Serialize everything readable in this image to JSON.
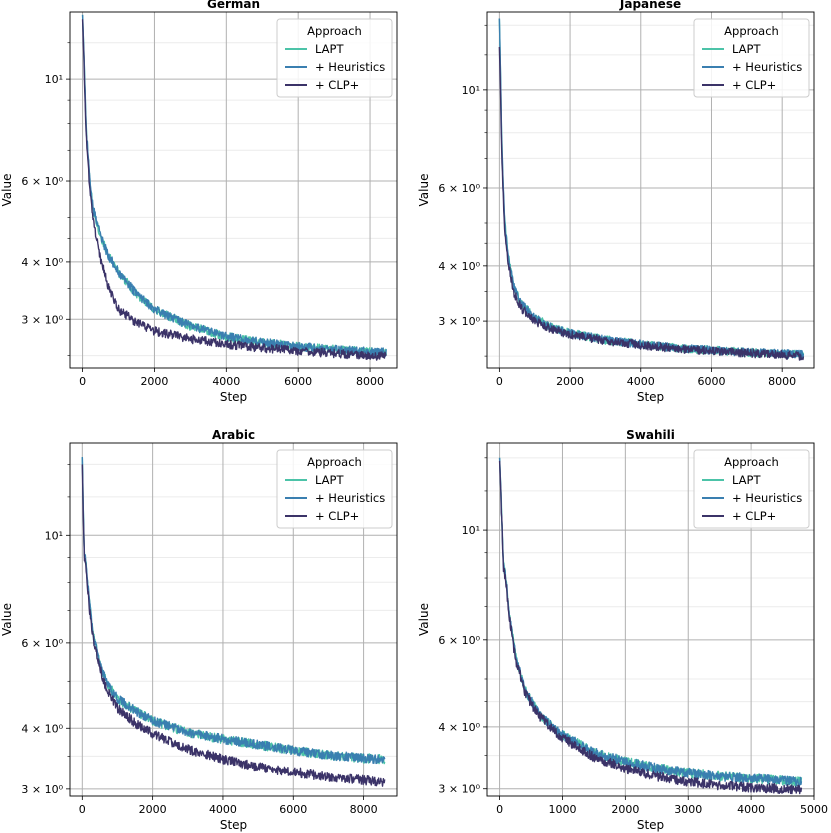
{
  "figure": {
    "y_axis_label": "Value",
    "x_axis_label": "Step"
  },
  "chart_data": [
    {
      "type": "line",
      "title": "German",
      "xlabel": "Step",
      "ylabel": "Value",
      "yscale": "log",
      "xlim": [
        -350,
        8750
      ],
      "ylim": [
        2.35,
        14.0
      ],
      "xticks": [
        0,
        2000,
        4000,
        6000,
        8000
      ],
      "xticklabels": [
        "0",
        "2000",
        "4000",
        "6000",
        "8000"
      ],
      "yticks": [
        3,
        4,
        6,
        10
      ],
      "yticklabels": [
        "3 × 10⁰",
        "4 × 10⁰",
        "6 × 10⁰",
        "10¹"
      ],
      "legend": {
        "title": "Approach",
        "position": "top-right"
      },
      "series": [
        {
          "name": "LAPT",
          "color": "#4cc3a8",
          "x": [
            0,
            50,
            100,
            200,
            300,
            500,
            700,
            1000,
            1500,
            2000,
            3000,
            4000,
            5000,
            6000,
            7000,
            8000,
            8450
          ],
          "values": [
            13.8,
            10.5,
            7.8,
            6.0,
            5.2,
            4.55,
            4.15,
            3.8,
            3.4,
            3.15,
            2.9,
            2.75,
            2.67,
            2.62,
            2.58,
            2.55,
            2.54
          ]
        },
        {
          "name": "+ Heuristics",
          "color": "#3a7fb0",
          "x": [
            0,
            50,
            100,
            200,
            300,
            500,
            700,
            1000,
            1500,
            2000,
            3000,
            4000,
            5000,
            6000,
            7000,
            8000,
            8450
          ],
          "values": [
            13.8,
            10.5,
            7.8,
            6.0,
            5.2,
            4.55,
            4.15,
            3.8,
            3.4,
            3.15,
            2.9,
            2.75,
            2.67,
            2.62,
            2.58,
            2.55,
            2.54
          ]
        },
        {
          "name": "+ CLP+",
          "color": "#3b3368",
          "x": [
            0,
            50,
            100,
            200,
            300,
            500,
            700,
            1000,
            1500,
            2000,
            3000,
            4000,
            5000,
            6000,
            7000,
            8000,
            8450
          ],
          "values": [
            13.5,
            10.0,
            7.5,
            5.7,
            4.9,
            4.05,
            3.55,
            3.15,
            2.95,
            2.83,
            2.72,
            2.65,
            2.6,
            2.56,
            2.53,
            2.5,
            2.49
          ]
        }
      ]
    },
    {
      "type": "line",
      "title": "Japanese",
      "xlabel": "Step",
      "ylabel": "Value",
      "yscale": "log",
      "xlim": [
        -350,
        8900
      ],
      "ylim": [
        2.35,
        15.0
      ],
      "xticks": [
        0,
        2000,
        4000,
        6000,
        8000
      ],
      "xticklabels": [
        "0",
        "2000",
        "4000",
        "6000",
        "8000"
      ],
      "yticks": [
        3,
        4,
        6,
        10
      ],
      "yticklabels": [
        "3 × 10⁰",
        "4 × 10⁰",
        "6 × 10⁰",
        "10¹"
      ],
      "legend": {
        "title": "Approach",
        "position": "top-right"
      },
      "series": [
        {
          "name": "LAPT",
          "color": "#4cc3a8",
          "x": [
            0,
            30,
            60,
            100,
            150,
            250,
            400,
            600,
            1000,
            1500,
            2000,
            3000,
            4000,
            5000,
            6000,
            7000,
            8000,
            8600
          ],
          "values": [
            14.5,
            11.0,
            8.0,
            6.3,
            5.0,
            4.2,
            3.6,
            3.3,
            3.05,
            2.9,
            2.82,
            2.72,
            2.66,
            2.61,
            2.58,
            2.55,
            2.53,
            2.52
          ]
        },
        {
          "name": "+ Heuristics",
          "color": "#3a7fb0",
          "x": [
            0,
            30,
            60,
            100,
            150,
            250,
            400,
            600,
            1000,
            1500,
            2000,
            3000,
            4000,
            5000,
            6000,
            7000,
            8000,
            8600
          ],
          "values": [
            14.5,
            11.0,
            8.0,
            6.3,
            5.0,
            4.2,
            3.6,
            3.3,
            3.05,
            2.9,
            2.82,
            2.72,
            2.66,
            2.61,
            2.58,
            2.55,
            2.53,
            2.52
          ]
        },
        {
          "name": "+ CLP+",
          "color": "#3b3368",
          "x": [
            0,
            30,
            60,
            100,
            150,
            250,
            400,
            600,
            1000,
            1500,
            2000,
            3000,
            4000,
            5000,
            6000,
            7000,
            8000,
            8600
          ],
          "values": [
            12.5,
            10.0,
            7.5,
            6.0,
            4.8,
            4.05,
            3.5,
            3.22,
            3.0,
            2.87,
            2.8,
            2.71,
            2.65,
            2.6,
            2.57,
            2.54,
            2.52,
            2.5
          ]
        }
      ]
    },
    {
      "type": "line",
      "title": "Arabic",
      "xlabel": "Step",
      "ylabel": "Value",
      "yscale": "log",
      "xlim": [
        -350,
        8950
      ],
      "ylim": [
        2.9,
        15.5
      ],
      "xticks": [
        0,
        2000,
        4000,
        6000,
        8000
      ],
      "xticklabels": [
        "0",
        "2000",
        "4000",
        "6000",
        "8000"
      ],
      "yticks": [
        3,
        4,
        6,
        10
      ],
      "yticklabels": [
        "3 × 10⁰",
        "4 × 10⁰",
        "6 × 10⁰",
        "10¹"
      ],
      "legend": {
        "title": "Approach",
        "position": "top-right"
      },
      "series": [
        {
          "name": "LAPT",
          "color": "#4cc3a8",
          "x": [
            0,
            30,
            60,
            100,
            200,
            300,
            500,
            700,
            1000,
            1500,
            2000,
            3000,
            4000,
            5000,
            6000,
            7000,
            8000,
            8600
          ],
          "values": [
            14.5,
            11.0,
            9.2,
            8.8,
            7.3,
            6.3,
            5.4,
            4.95,
            4.6,
            4.35,
            4.15,
            3.92,
            3.8,
            3.7,
            3.6,
            3.52,
            3.47,
            3.45
          ]
        },
        {
          "name": "+ Heuristics",
          "color": "#3a7fb0",
          "x": [
            0,
            30,
            60,
            100,
            200,
            300,
            500,
            700,
            1000,
            1500,
            2000,
            3000,
            4000,
            5000,
            6000,
            7000,
            8000,
            8600
          ],
          "values": [
            14.5,
            11.0,
            9.2,
            8.8,
            7.3,
            6.3,
            5.4,
            4.95,
            4.6,
            4.35,
            4.15,
            3.92,
            3.8,
            3.7,
            3.6,
            3.52,
            3.47,
            3.45
          ]
        },
        {
          "name": "+ CLP+",
          "color": "#3b3368",
          "x": [
            0,
            30,
            60,
            100,
            200,
            300,
            500,
            700,
            1000,
            1500,
            2000,
            3000,
            4000,
            5000,
            6000,
            7000,
            8000,
            8600
          ],
          "values": [
            14.0,
            10.5,
            9.0,
            8.6,
            7.1,
            6.2,
            5.3,
            4.8,
            4.4,
            4.1,
            3.9,
            3.62,
            3.45,
            3.33,
            3.25,
            3.18,
            3.13,
            3.1
          ]
        }
      ]
    },
    {
      "type": "line",
      "title": "Swahili",
      "xlabel": "Step",
      "ylabel": "Value",
      "yscale": "log",
      "xlim": [
        -200,
        5000
      ],
      "ylim": [
        2.9,
        15.0
      ],
      "xticks": [
        0,
        1000,
        2000,
        3000,
        4000,
        5000
      ],
      "xticklabels": [
        "0",
        "1000",
        "2000",
        "3000",
        "4000",
        "5000"
      ],
      "yticks": [
        3,
        4,
        6,
        10
      ],
      "yticklabels": [
        "3 × 10⁰",
        "4 × 10⁰",
        "6 × 10⁰",
        "10¹"
      ],
      "legend": {
        "title": "Approach",
        "position": "top-right"
      },
      "series": [
        {
          "name": "LAPT",
          "color": "#4cc3a8",
          "x": [
            0,
            30,
            60,
            100,
            150,
            250,
            400,
            600,
            800,
            1000,
            1500,
            2000,
            2500,
            3000,
            3500,
            4000,
            4500,
            4800
          ],
          "values": [
            14.0,
            11.0,
            8.5,
            8.0,
            6.8,
            5.6,
            4.75,
            4.3,
            4.05,
            3.85,
            3.55,
            3.4,
            3.3,
            3.23,
            3.18,
            3.15,
            3.12,
            3.1
          ]
        },
        {
          "name": "+ Heuristics",
          "color": "#3a7fb0",
          "x": [
            0,
            30,
            60,
            100,
            150,
            250,
            400,
            600,
            800,
            1000,
            1500,
            2000,
            2500,
            3000,
            3500,
            4000,
            4500,
            4800
          ],
          "values": [
            14.0,
            11.0,
            8.5,
            8.0,
            6.8,
            5.6,
            4.75,
            4.3,
            4.05,
            3.85,
            3.55,
            3.4,
            3.3,
            3.23,
            3.18,
            3.15,
            3.12,
            3.1
          ]
        },
        {
          "name": "+ CLP+",
          "color": "#3b3368",
          "x": [
            0,
            30,
            60,
            100,
            150,
            250,
            400,
            600,
            800,
            1000,
            1500,
            2000,
            2500,
            3000,
            3500,
            4000,
            4500,
            4800
          ],
          "values": [
            13.8,
            10.8,
            8.4,
            7.9,
            6.7,
            5.5,
            4.7,
            4.25,
            4.0,
            3.8,
            3.47,
            3.3,
            3.18,
            3.1,
            3.05,
            3.02,
            3.0,
            2.99
          ]
        }
      ]
    }
  ]
}
